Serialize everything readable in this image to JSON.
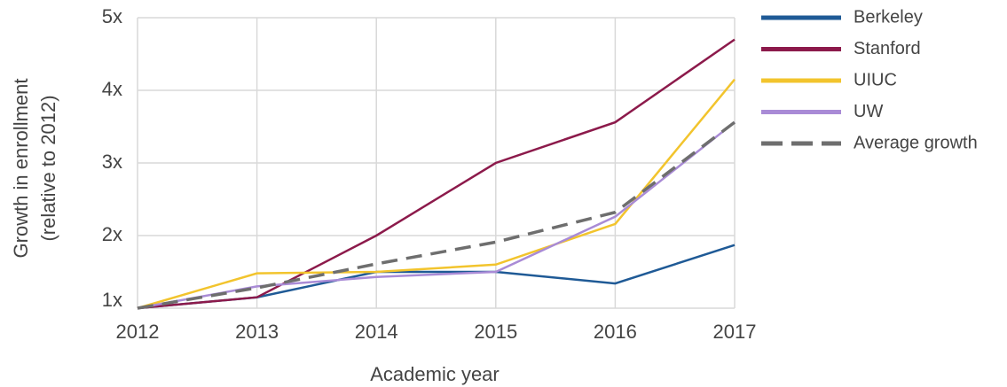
{
  "chart_data": {
    "type": "line",
    "x_label": "Academic year",
    "y_label": [
      "Growth in enrollment",
      "(relative to 2012)"
    ],
    "x": [
      2012,
      2013,
      2014,
      2015,
      2016,
      2017
    ],
    "xlim": [
      2012,
      2017
    ],
    "xticks": [
      2012,
      2013,
      2014,
      2015,
      2016,
      2017
    ],
    "ylim": [
      1,
      5
    ],
    "yticks": [
      {
        "value": 1,
        "label": "1x"
      },
      {
        "value": 2,
        "label": "2x"
      },
      {
        "value": 3,
        "label": "3x"
      },
      {
        "value": 4,
        "label": "4x"
      },
      {
        "value": 5,
        "label": "5x"
      }
    ],
    "grid": true,
    "legend": "right",
    "series": [
      {
        "name": "Berkeley",
        "color": "#1f5a96",
        "values": [
          1,
          1.15,
          1.5,
          1.5,
          1.34,
          1.87
        ]
      },
      {
        "name": "Stanford",
        "color": "#8c1a4b",
        "values": [
          1,
          1.15,
          2.0,
          3.0,
          3.56,
          4.7
        ]
      },
      {
        "name": "UIUC",
        "color": "#f2c42d",
        "values": [
          1,
          1.48,
          1.5,
          1.6,
          2.16,
          4.15
        ]
      },
      {
        "name": "UW",
        "color": "#a98bd6",
        "values": [
          1,
          1.3,
          1.43,
          1.5,
          2.26,
          3.56
        ]
      },
      {
        "name": "Average growth",
        "color": "#6e6e6e",
        "dashed": true,
        "values": [
          1,
          1.28,
          1.61,
          1.91,
          2.32,
          3.56
        ]
      }
    ]
  }
}
